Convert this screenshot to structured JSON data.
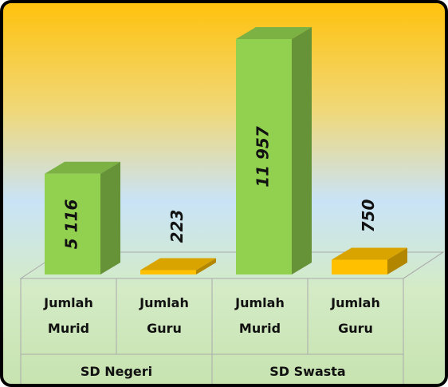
{
  "chart_data": {
    "type": "bar3d",
    "categories": [
      "Jumlah Murid",
      "Jumlah Guru",
      "Jumlah Murid",
      "Jumlah Guru"
    ],
    "groups": [
      "SD Negeri",
      "SD Swasta"
    ],
    "values": [
      5116,
      223,
      11957,
      750
    ],
    "value_labels": [
      "5 116",
      "223",
      "11 957",
      "750"
    ],
    "colors": [
      "#92d050",
      "#ffc000",
      "#92d050",
      "#ffc000"
    ]
  }
}
